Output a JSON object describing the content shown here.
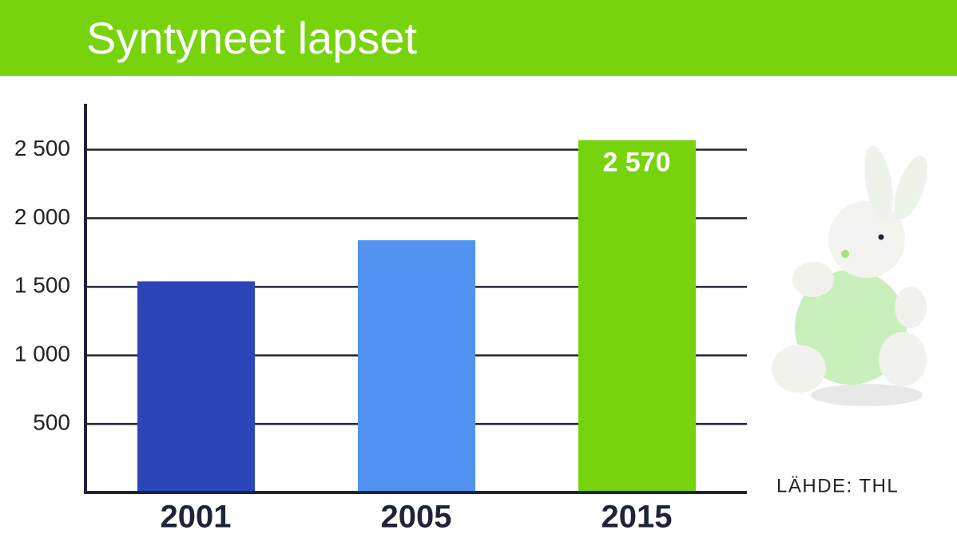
{
  "chart_data": {
    "type": "bar",
    "title": "Syntyneet lapset",
    "categories": [
      "2001",
      "2005",
      "2015"
    ],
    "values": [
      1540,
      1840,
      2570
    ],
    "value_labels": [
      null,
      null,
      "2 570"
    ],
    "colors": [
      "#2b46b8",
      "#5292f0",
      "#77d40c"
    ],
    "ylim": [
      0,
      2800
    ],
    "yticks": [
      500,
      {
        "value": 1000,
        "label": "1 000"
      },
      {
        "value": 1500,
        "label": "1 500"
      },
      {
        "value": 2000,
        "label": "2 000"
      },
      {
        "value": 2500,
        "label": "2 500"
      }
    ],
    "grid": true,
    "source": "LÄHDE: THL"
  }
}
